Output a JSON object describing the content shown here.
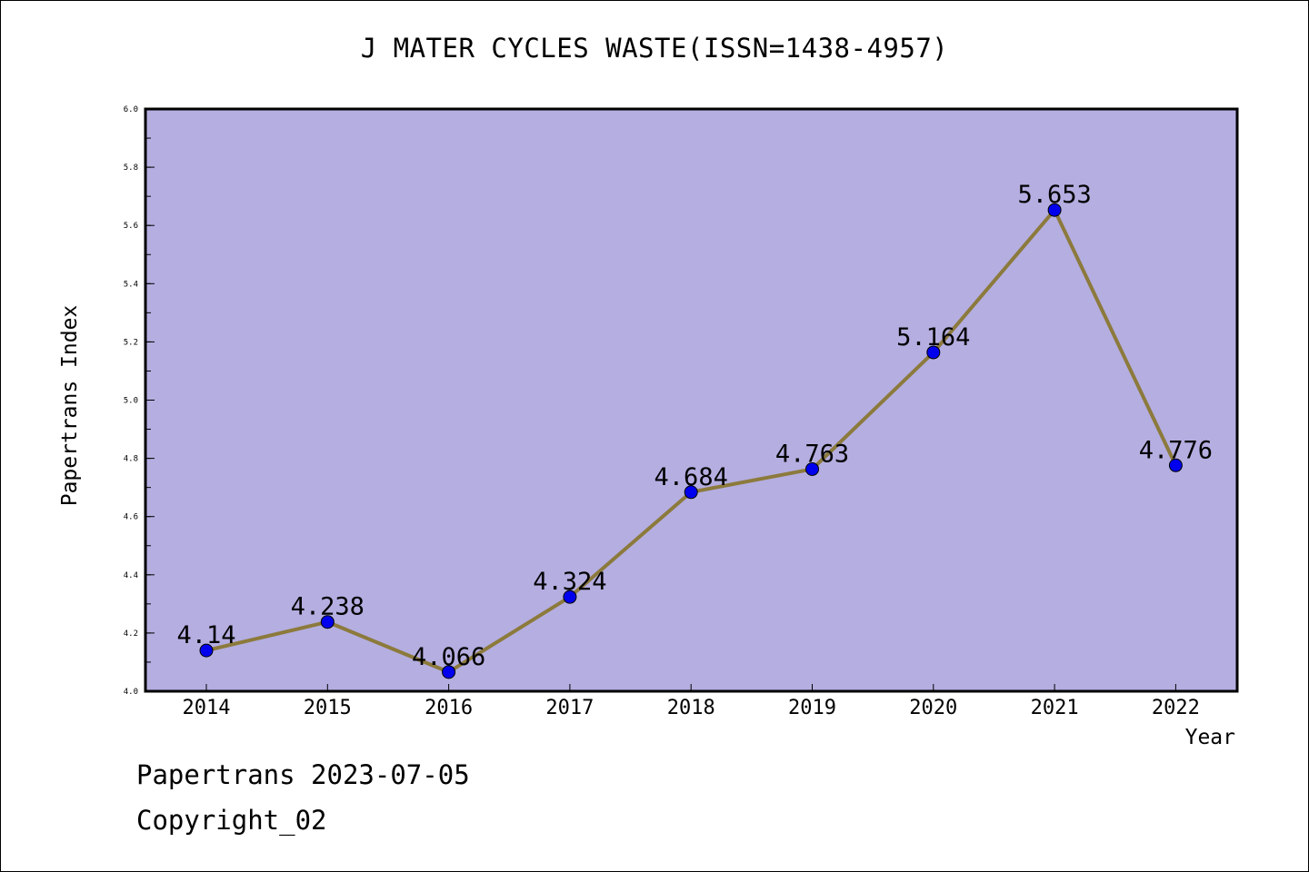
{
  "chart_data": {
    "type": "line",
    "title": "J MATER CYCLES WASTE(ISSN=1438-4957)",
    "xlabel": "Year",
    "ylabel": "Papertrans Index",
    "categories": [
      "2014",
      "2015",
      "2016",
      "2017",
      "2018",
      "2019",
      "2020",
      "2021",
      "2022"
    ],
    "series": [
      {
        "values": [
          4.14,
          4.238,
          4.066,
          4.324,
          4.684,
          4.763,
          5.164,
          5.653,
          4.776
        ],
        "data_labels": [
          "4.14",
          "4.238",
          "4.066",
          "4.324",
          "4.684",
          "4.763",
          "5.164",
          "5.653",
          "4.776"
        ],
        "line_color": "#8c7a3c",
        "marker_color": "#0000ee"
      }
    ],
    "ylim": [
      4.0,
      6.0
    ],
    "yticks": [
      "4.0",
      "4.2",
      "4.4",
      "4.6",
      "4.8",
      "5.0",
      "5.2",
      "5.4",
      "5.6",
      "5.8",
      "6.0"
    ],
    "plot_background": "#b4aee1",
    "grid": false,
    "legend": "none"
  },
  "footer": {
    "line1": "Papertrans 2023-07-05",
    "line2": "Copyright_02"
  }
}
